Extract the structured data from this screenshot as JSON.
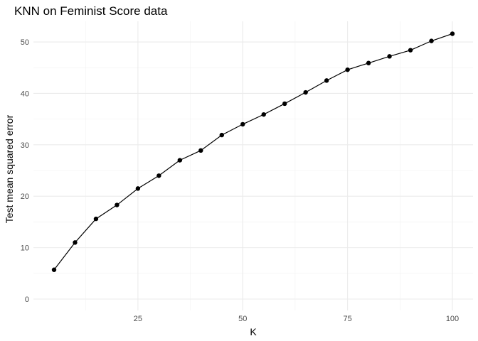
{
  "chart_data": {
    "type": "line",
    "title": "KNN on Feminist Score data",
    "xlabel": "K",
    "ylabel": "Test mean squared error",
    "xlim": [
      5,
      100
    ],
    "ylim": [
      0,
      51.6
    ],
    "x_ticks": [
      25,
      50,
      75,
      100
    ],
    "y_ticks": [
      0,
      10,
      20,
      30,
      40,
      50
    ],
    "grid": true,
    "legend": "none",
    "series": [
      {
        "color": "#000000",
        "x": [
          5,
          10,
          15,
          20,
          25,
          30,
          35,
          40,
          45,
          50,
          55,
          60,
          65,
          70,
          75,
          80,
          85,
          90,
          95,
          100
        ],
        "y": [
          5.7,
          11.0,
          15.6,
          18.3,
          21.5,
          24.0,
          27.0,
          28.9,
          31.9,
          34.0,
          35.9,
          38.0,
          40.2,
          42.5,
          44.6,
          45.9,
          47.2,
          48.4,
          50.2,
          51.6
        ]
      }
    ]
  }
}
